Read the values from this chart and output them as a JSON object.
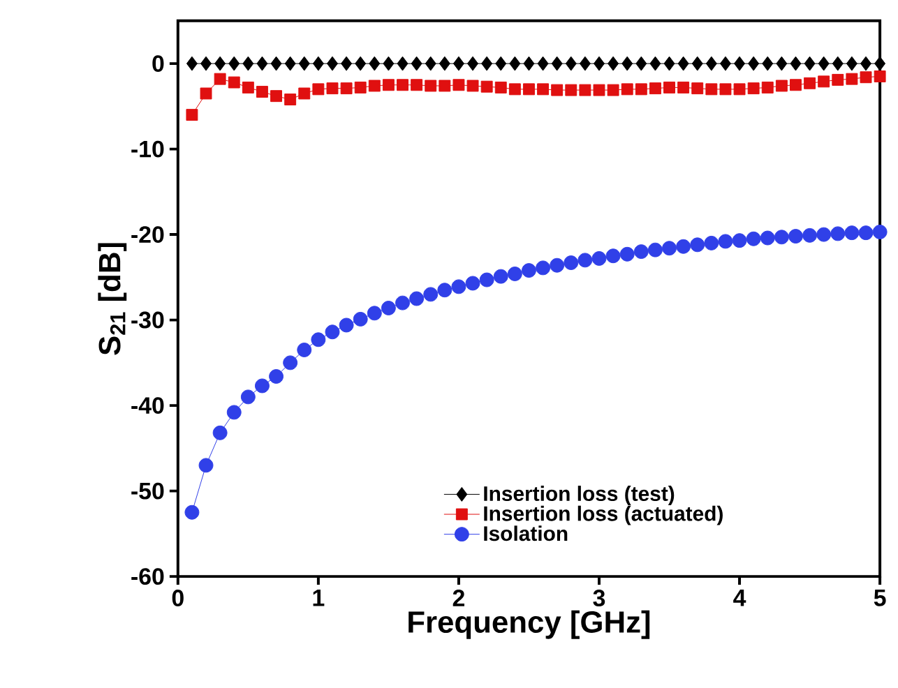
{
  "chart_data": {
    "type": "line",
    "xlabel": "Frequency [GHz]",
    "ylabel": "S$_{21}$ [dB]",
    "x": [
      0.1,
      0.2,
      0.3,
      0.4,
      0.5,
      0.6,
      0.7,
      0.8,
      0.9,
      1.0,
      1.1,
      1.2,
      1.3,
      1.4,
      1.5,
      1.6,
      1.7,
      1.8,
      1.9,
      2.0,
      2.1,
      2.2,
      2.3,
      2.4,
      2.5,
      2.6,
      2.7,
      2.8,
      2.9,
      3.0,
      3.1,
      3.2,
      3.3,
      3.4,
      3.5,
      3.6,
      3.7,
      3.8,
      3.9,
      4.0,
      4.1,
      4.2,
      4.3,
      4.4,
      4.5,
      4.6,
      4.7,
      4.8,
      4.9,
      5.0
    ],
    "series": [
      {
        "name": "Insertion loss (test)",
        "color": "#000000",
        "marker": "diamond",
        "values": [
          0,
          0,
          0,
          0,
          0,
          0,
          0,
          0,
          0,
          0,
          0,
          0,
          0,
          0,
          0,
          0,
          0,
          0,
          0,
          0,
          0,
          0,
          0,
          0,
          0,
          0,
          0,
          0,
          0,
          0,
          0,
          0,
          0,
          0,
          0,
          0,
          0,
          0,
          0,
          0,
          0,
          0,
          0,
          0,
          0,
          0,
          0,
          0,
          0,
          0
        ]
      },
      {
        "name": "Insertion loss (actuated)",
        "color": "#e01010",
        "marker": "square",
        "values": [
          -6,
          -3.5,
          -1.8,
          -2.2,
          -2.8,
          -3.3,
          -3.8,
          -4.2,
          -3.5,
          -3,
          -2.9,
          -2.9,
          -2.8,
          -2.6,
          -2.5,
          -2.5,
          -2.5,
          -2.6,
          -2.6,
          -2.5,
          -2.6,
          -2.7,
          -2.8,
          -3,
          -3,
          -3,
          -3.1,
          -3.1,
          -3.1,
          -3.1,
          -3.1,
          -3,
          -3,
          -2.9,
          -2.8,
          -2.8,
          -2.9,
          -3,
          -3,
          -3,
          -2.9,
          -2.8,
          -2.6,
          -2.5,
          -2.3,
          -2.1,
          -1.9,
          -1.8,
          -1.6,
          -1.5
        ]
      },
      {
        "name": "Isolation",
        "color": "#3040e8",
        "marker": "circle",
        "values": [
          -52.5,
          -47,
          -43.2,
          -40.8,
          -39,
          -37.7,
          -36.6,
          -35,
          -33.5,
          -32.3,
          -31.4,
          -30.6,
          -29.9,
          -29.2,
          -28.6,
          -28,
          -27.5,
          -27,
          -26.5,
          -26.1,
          -25.7,
          -25.3,
          -24.9,
          -24.6,
          -24.2,
          -23.9,
          -23.6,
          -23.3,
          -23,
          -22.8,
          -22.5,
          -22.3,
          -22,
          -21.8,
          -21.6,
          -21.4,
          -21.2,
          -21,
          -20.8,
          -20.7,
          -20.5,
          -20.4,
          -20.3,
          -20.2,
          -20.1,
          -20,
          -19.9,
          -19.8,
          -19.8,
          -19.7
        ]
      }
    ],
    "xlim": [
      0,
      5
    ],
    "ylim": [
      -60,
      5
    ],
    "xticks": [
      0,
      1,
      2,
      3,
      4,
      5
    ],
    "yticks": [
      -60,
      -50,
      -40,
      -30,
      -20,
      -10,
      0
    ],
    "grid": false,
    "legend": "bottom",
    "line_style": "solid"
  }
}
